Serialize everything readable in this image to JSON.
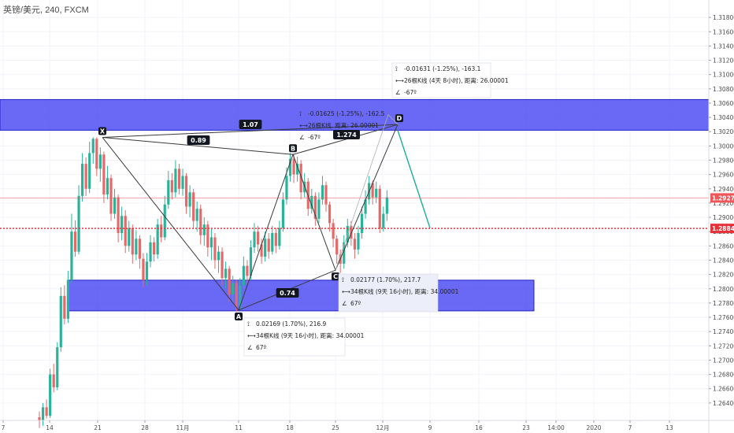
{
  "header": {
    "title": "英镑/美元, 240, FXCM"
  },
  "colors": {
    "up": "#2bb39a",
    "down": "#e46a6a",
    "zone": "#3f3ff2",
    "pattern_line": "#3a3a3a",
    "last_price": "#f0555a",
    "dotted": "#e8323a",
    "projection": "#18b097",
    "box_fill": "#eceffa"
  },
  "chart_data": {
    "type": "candlestick",
    "symbol": "英镑/美元",
    "timeframe": "240",
    "source": "FXCM",
    "ylim": [
      1.262,
      1.32
    ],
    "y_ticks": [
      "1.31800",
      "1.31600",
      "1.31400",
      "1.31200",
      "1.31000",
      "1.30800",
      "1.30600",
      "1.30400",
      "1.30200",
      "1.30000",
      "1.29800",
      "1.29600",
      "1.29400",
      "1.29200",
      "1.29000",
      "1.28800",
      "1.28600",
      "1.28400",
      "1.28200",
      "1.28000",
      "1.27800",
      "1.27600",
      "1.27400",
      "1.27200",
      "1.27000",
      "1.26800",
      "1.26600",
      "1.26400"
    ],
    "x_ticks": [
      "7",
      "14",
      "21",
      "28",
      "11月",
      "11",
      "18",
      "25",
      "12月",
      "9",
      "16",
      "23",
      "14:00",
      "2020",
      "7",
      "13"
    ],
    "last_price_label": "1.29272",
    "level_label": "1.28845",
    "zones": [
      {
        "from": 1.3022,
        "to": 1.3065
      },
      {
        "from": 1.2769,
        "to": 1.2812
      }
    ],
    "pattern_points": [
      {
        "name": "X",
        "label": "X",
        "date": "10月21",
        "price": 1.3012
      },
      {
        "name": "A",
        "label": "A",
        "date": "11月11",
        "price": 1.277
      },
      {
        "name": "B",
        "label": "B",
        "date": "11月18",
        "price": 1.2988
      },
      {
        "name": "C",
        "label": "C",
        "date": "11月25",
        "price": 1.2826
      },
      {
        "name": "D",
        "label": "D",
        "date": "12月3",
        "price": 1.303
      }
    ],
    "ratios": [
      "0.89",
      "1.07",
      "1.274",
      "0.74"
    ],
    "measurements": [
      {
        "line1": "-0.01631 (-1.25%), -163.1",
        "line2": "26根K线 (4天 8小时), 距离: 26.00001",
        "line3": "-67º"
      },
      {
        "line1": "-0.01625 (-1.25%), -162.5",
        "line2": "26根K线, 距离: 26.00001",
        "line3": "-67º"
      },
      {
        "line1": "0.02177 (1.70%), 217.7",
        "line2": "34根K线 (9天 16小时), 距离: 34.00001",
        "line3": "67º"
      },
      {
        "line1": "0.02169 (1.70%), 216.9",
        "line2": "34根K线 (9天 16小时), 距离: 34.00001",
        "line3": "67º"
      }
    ],
    "projection": [
      {
        "date": "12月3",
        "price": 1.3022
      },
      {
        "date": "12月9",
        "price": 1.2885
      }
    ],
    "candles": [
      [
        1.262,
        1.2615,
        1.2628,
        1.2605
      ],
      [
        1.2615,
        1.2634,
        1.264,
        1.2608
      ],
      [
        1.2634,
        1.2622,
        1.2645,
        1.2618
      ],
      [
        1.2622,
        1.268,
        1.2688,
        1.2619
      ],
      [
        1.268,
        1.2662,
        1.2695,
        1.2655
      ],
      [
        1.2662,
        1.2718,
        1.2725,
        1.2658
      ],
      [
        1.2718,
        1.279,
        1.2802,
        1.2712
      ],
      [
        1.279,
        1.2758,
        1.2805,
        1.275
      ],
      [
        1.2758,
        1.2812,
        1.2825,
        1.2752
      ],
      [
        1.2812,
        1.288,
        1.2905,
        1.2808
      ],
      [
        1.288,
        1.2852,
        1.2896,
        1.2845
      ],
      [
        1.2852,
        1.293,
        1.2945,
        1.2848
      ],
      [
        1.293,
        1.2975,
        1.299,
        1.2922
      ],
      [
        1.2975,
        1.294,
        1.2984,
        1.293
      ],
      [
        1.294,
        1.299,
        1.3006,
        1.2934
      ],
      [
        1.299,
        1.301,
        1.3012,
        1.2975
      ],
      [
        1.301,
        1.2968,
        1.3012,
        1.2958
      ],
      [
        1.2968,
        1.2988,
        1.2998,
        1.295
      ],
      [
        1.2988,
        1.2932,
        1.2992,
        1.292
      ],
      [
        1.2932,
        1.2955,
        1.2972,
        1.2925
      ],
      [
        1.2955,
        1.2905,
        1.296,
        1.2895
      ],
      [
        1.2905,
        1.2928,
        1.294,
        1.2898
      ],
      [
        1.2928,
        1.2878,
        1.2932,
        1.2865
      ],
      [
        1.2878,
        1.2902,
        1.2915,
        1.2868
      ],
      [
        1.2902,
        1.286,
        1.291,
        1.285
      ],
      [
        1.286,
        1.2885,
        1.2895,
        1.2852
      ],
      [
        1.2885,
        1.2848,
        1.289,
        1.2835
      ],
      [
        1.2848,
        1.287,
        1.2882,
        1.284
      ],
      [
        1.287,
        1.2842,
        1.2875,
        1.2828
      ],
      [
        1.2842,
        1.2812,
        1.285,
        1.2802
      ],
      [
        1.2812,
        1.2838,
        1.285,
        1.2805
      ],
      [
        1.2838,
        1.2865,
        1.2875,
        1.283
      ],
      [
        1.2865,
        1.2848,
        1.2872,
        1.2838
      ],
      [
        1.2848,
        1.289,
        1.2898,
        1.2842
      ],
      [
        1.289,
        1.2872,
        1.2902,
        1.2865
      ],
      [
        1.2872,
        1.2918,
        1.293,
        1.2868
      ],
      [
        1.2918,
        1.2952,
        1.2965,
        1.2912
      ],
      [
        1.2952,
        1.2935,
        1.2962,
        1.2925
      ],
      [
        1.2935,
        1.2968,
        1.298,
        1.2928
      ],
      [
        1.2968,
        1.294,
        1.2975,
        1.2932
      ],
      [
        1.294,
        1.2958,
        1.2968,
        1.293
      ],
      [
        1.2958,
        1.2915,
        1.2962,
        1.2905
      ],
      [
        1.2915,
        1.2935,
        1.2945,
        1.29
      ],
      [
        1.2935,
        1.2895,
        1.294,
        1.2885
      ],
      [
        1.2895,
        1.2912,
        1.2922,
        1.288
      ],
      [
        1.2912,
        1.2875,
        1.2918,
        1.2862
      ],
      [
        1.2875,
        1.289,
        1.29,
        1.286
      ],
      [
        1.289,
        1.2858,
        1.2895,
        1.2845
      ],
      [
        1.2858,
        1.2872,
        1.2885,
        1.284
      ],
      [
        1.2872,
        1.284,
        1.2878,
        1.2828
      ],
      [
        1.284,
        1.2852,
        1.286,
        1.2822
      ],
      [
        1.2852,
        1.2815,
        1.2858,
        1.2805
      ],
      [
        1.2815,
        1.2828,
        1.2838,
        1.28
      ],
      [
        1.2828,
        1.2792,
        1.2832,
        1.2782
      ],
      [
        1.2792,
        1.2808,
        1.2818,
        1.278
      ],
      [
        1.2808,
        1.2774,
        1.2812,
        1.2768
      ],
      [
        1.2774,
        1.2805,
        1.2815,
        1.277
      ],
      [
        1.2805,
        1.2832,
        1.2845,
        1.28
      ],
      [
        1.2832,
        1.2818,
        1.284,
        1.2808
      ],
      [
        1.2818,
        1.2858,
        1.2868,
        1.2812
      ],
      [
        1.2858,
        1.288,
        1.2892,
        1.285
      ],
      [
        1.288,
        1.2862,
        1.2888,
        1.2852
      ],
      [
        1.2862,
        1.2845,
        1.287,
        1.2835
      ],
      [
        1.2845,
        1.287,
        1.288,
        1.2838
      ],
      [
        1.287,
        1.2852,
        1.2878,
        1.2842
      ],
      [
        1.2852,
        1.2878,
        1.2888,
        1.2848
      ],
      [
        1.2878,
        1.286,
        1.2885,
        1.285
      ],
      [
        1.286,
        1.2885,
        1.2895,
        1.2855
      ],
      [
        1.2885,
        1.2925,
        1.2935,
        1.288
      ],
      [
        1.2925,
        1.2958,
        1.297,
        1.2918
      ],
      [
        1.2958,
        1.2982,
        1.299,
        1.295
      ],
      [
        1.2982,
        1.296,
        1.2988,
        1.2948
      ],
      [
        1.296,
        1.2975,
        1.2985,
        1.295
      ],
      [
        1.2975,
        1.2935,
        1.298,
        1.2925
      ],
      [
        1.2935,
        1.295,
        1.2962,
        1.2928
      ],
      [
        1.295,
        1.2912,
        1.2955,
        1.2902
      ],
      [
        1.2912,
        1.293,
        1.294,
        1.2905
      ],
      [
        1.293,
        1.2898,
        1.2935,
        1.2888
      ],
      [
        1.2898,
        1.2925,
        1.2935,
        1.2892
      ],
      [
        1.2925,
        1.2945,
        1.2958,
        1.2918
      ],
      [
        1.2945,
        1.2918,
        1.295,
        1.2908
      ],
      [
        1.2918,
        1.2892,
        1.2922,
        1.288
      ],
      [
        1.2892,
        1.287,
        1.2898,
        1.2858
      ],
      [
        1.287,
        1.2848,
        1.2875,
        1.2835
      ],
      [
        1.2848,
        1.2835,
        1.2855,
        1.2822
      ],
      [
        1.2835,
        1.2865,
        1.2875,
        1.2828
      ],
      [
        1.2865,
        1.2888,
        1.2898,
        1.2858
      ],
      [
        1.2888,
        1.287,
        1.2895,
        1.286
      ],
      [
        1.287,
        1.2855,
        1.2878,
        1.2842
      ],
      [
        1.2855,
        1.2878,
        1.2888,
        1.2848
      ],
      [
        1.2878,
        1.2905,
        1.2915,
        1.287
      ],
      [
        1.2905,
        1.2925,
        1.2938,
        1.2898
      ],
      [
        1.2925,
        1.2948,
        1.2958,
        1.2918
      ],
      [
        1.2948,
        1.2928,
        1.2952,
        1.2918
      ],
      [
        1.2928,
        1.294,
        1.295,
        1.292
      ],
      [
        1.294,
        1.2885,
        1.2945,
        1.2878
      ],
      [
        1.2885,
        1.2905,
        1.2915,
        1.288
      ],
      [
        1.2905,
        1.2928,
        1.2938,
        1.2895
      ]
    ]
  }
}
